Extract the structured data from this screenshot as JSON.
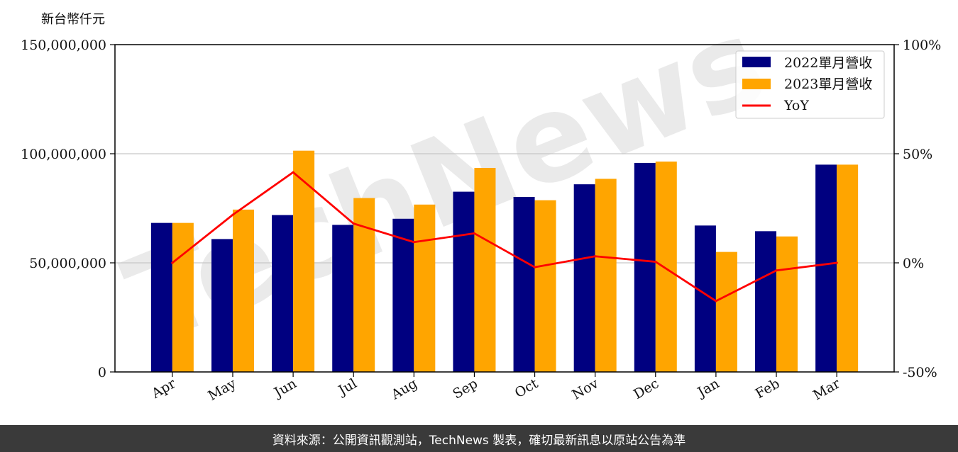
{
  "chart_data": {
    "type": "bar",
    "unit_label": "新台幣仟元",
    "categories": [
      "Apr",
      "May",
      "Jun",
      "Jul",
      "Aug",
      "Sep",
      "Oct",
      "Nov",
      "Dec",
      "Jan",
      "Feb",
      "Mar"
    ],
    "series": [
      {
        "name": "2022單月營收",
        "type": "bar",
        "color": "#000080",
        "axis": "left",
        "values": [
          68300000,
          60900000,
          71900000,
          67400000,
          70200000,
          82600000,
          80200000,
          86000000,
          95800000,
          67100000,
          64500000,
          95000000
        ]
      },
      {
        "name": "2023單月營收",
        "type": "bar",
        "color": "#FFA500",
        "axis": "left",
        "values": [
          68300000,
          74400000,
          101400000,
          79700000,
          76700000,
          93500000,
          78700000,
          88500000,
          96400000,
          55000000,
          62100000,
          95000000
        ]
      },
      {
        "name": "YoY",
        "type": "line",
        "color": "#FF0000",
        "axis": "right",
        "values": [
          0,
          22,
          41.5,
          18,
          9.5,
          13.5,
          -2,
          3,
          0.5,
          -17.5,
          -3.5,
          0
        ]
      }
    ],
    "left_axis": {
      "min": 0,
      "max": 150000000,
      "ticks": [
        0,
        50000000,
        100000000,
        150000000
      ],
      "tick_labels": [
        "0",
        "50,000,000",
        "100,000,000",
        "150,000,000"
      ]
    },
    "right_axis": {
      "min": -50,
      "max": 100,
      "ticks": [
        -50,
        0,
        50,
        100
      ],
      "tick_labels": [
        "-50%",
        "0%",
        "50%",
        "100%"
      ]
    },
    "grid": "horizontal",
    "legend_position": "top-right"
  },
  "watermark": "TechNews",
  "footer": {
    "source_text": "資料來源：公開資訊觀測站，TechNews 製表，確切最新訊息以原站公告為準"
  }
}
